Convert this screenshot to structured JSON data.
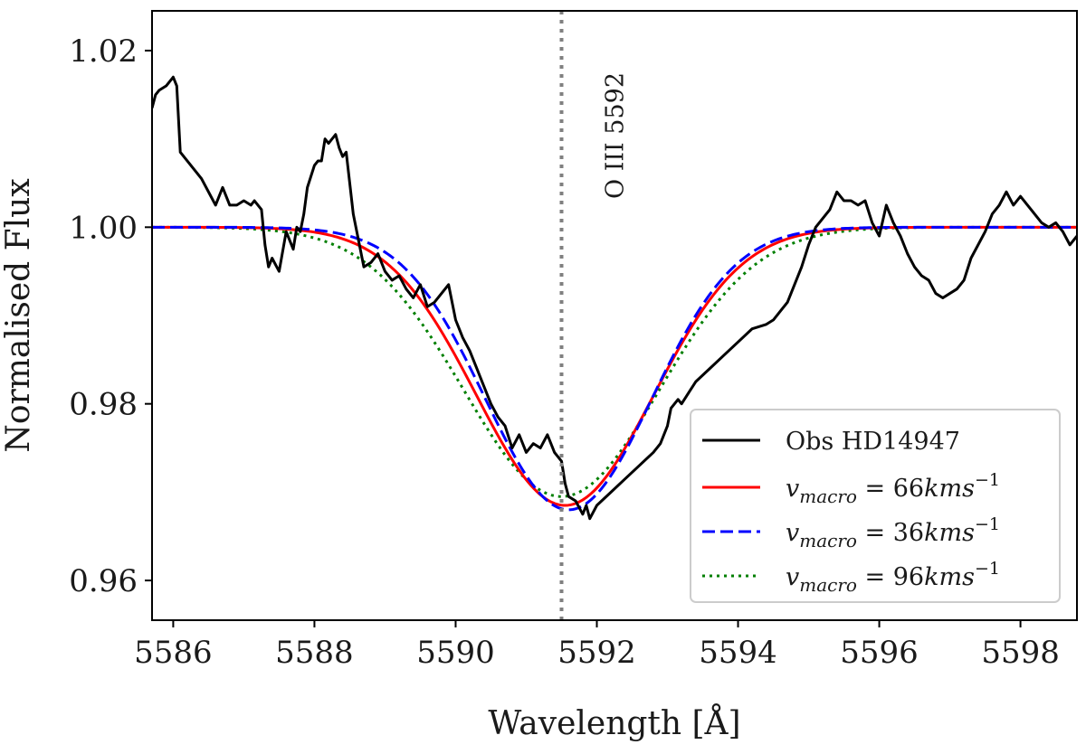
{
  "chart_data": {
    "type": "line",
    "title": "",
    "xlabel": "Wavelength [Å]",
    "ylabel": "Normalised Flux",
    "xlim": [
      5585.7,
      5598.8
    ],
    "ylim": [
      0.9555,
      1.0245
    ],
    "xticks": [
      5586,
      5588,
      5590,
      5592,
      5594,
      5596,
      5598
    ],
    "xtick_labels": [
      "5586",
      "5588",
      "5590",
      "5592",
      "5594",
      "5596",
      "5598"
    ],
    "yticks": [
      0.96,
      0.98,
      1.0,
      1.02
    ],
    "ytick_labels": [
      "0.96",
      "0.98",
      "1.00",
      "1.02"
    ],
    "grid": false,
    "legend_position": "lower-right",
    "annotations": [
      {
        "text": "O III 5592",
        "x": 5591.5,
        "line_color": "#808080",
        "line_style": "dotted"
      }
    ],
    "series": [
      {
        "name": "Obs HD14947",
        "color": "#000000",
        "style": "solid",
        "x": [
          5585.7,
          5585.75,
          5585.8,
          5585.9,
          5586.0,
          5586.05,
          5586.1,
          5586.2,
          5586.3,
          5586.4,
          5586.5,
          5586.6,
          5586.7,
          5586.8,
          5586.9,
          5587.0,
          5587.1,
          5587.15,
          5587.2,
          5587.25,
          5587.3,
          5587.35,
          5587.4,
          5587.5,
          5587.6,
          5587.65,
          5587.7,
          5587.75,
          5587.8,
          5587.85,
          5587.9,
          5588.0,
          5588.05,
          5588.1,
          5588.15,
          5588.2,
          5588.3,
          5588.35,
          5588.4,
          5588.45,
          5588.5,
          5588.55,
          5588.6,
          5588.7,
          5588.8,
          5588.9,
          5589.0,
          5589.1,
          5589.2,
          5589.3,
          5589.4,
          5589.5,
          5589.6,
          5589.7,
          5589.8,
          5589.9,
          5590.0,
          5590.1,
          5590.2,
          5590.3,
          5590.4,
          5590.5,
          5590.6,
          5590.7,
          5590.8,
          5590.9,
          5591.0,
          5591.1,
          5591.2,
          5591.3,
          5591.4,
          5591.5,
          5591.55,
          5591.6,
          5591.7,
          5591.8,
          5591.85,
          5591.9,
          5592.0,
          5592.2,
          5592.4,
          5592.6,
          5592.8,
          5592.9,
          5593.0,
          5593.05,
          5593.1,
          5593.15,
          5593.2,
          5593.4,
          5593.6,
          5593.8,
          5594.0,
          5594.2,
          5594.4,
          5594.5,
          5594.6,
          5594.7,
          5594.8,
          5594.9,
          5595.0,
          5595.1,
          5595.2,
          5595.3,
          5595.4,
          5595.5,
          5595.6,
          5595.7,
          5595.8,
          5595.9,
          5596.0,
          5596.1,
          5596.2,
          5596.3,
          5596.4,
          5596.5,
          5596.6,
          5596.7,
          5596.8,
          5596.9,
          5597.0,
          5597.1,
          5597.2,
          5597.3,
          5597.4,
          5597.5,
          5597.6,
          5597.7,
          5597.8,
          5597.9,
          5598.0,
          5598.1,
          5598.2,
          5598.3,
          5598.4,
          5598.5,
          5598.6,
          5598.7,
          5598.8
        ],
        "y": [
          1.0135,
          1.015,
          1.0155,
          1.016,
          1.017,
          1.016,
          1.0085,
          1.0075,
          1.0065,
          1.0055,
          1.004,
          1.0025,
          1.0045,
          1.0025,
          1.0025,
          1.003,
          1.0025,
          1.003,
          1.0025,
          1.002,
          0.998,
          0.9955,
          0.9965,
          0.995,
          0.9995,
          0.9985,
          0.9975,
          1.0,
          0.9995,
          1.0015,
          1.0045,
          1.007,
          1.0075,
          1.0075,
          1.01,
          1.0095,
          1.0105,
          1.009,
          1.008,
          1.0085,
          1.005,
          1.0015,
          0.9995,
          0.9955,
          0.996,
          0.997,
          0.995,
          0.994,
          0.9945,
          0.993,
          0.992,
          0.9935,
          0.991,
          0.9915,
          0.9925,
          0.9935,
          0.9895,
          0.9875,
          0.986,
          0.984,
          0.982,
          0.98,
          0.9785,
          0.9775,
          0.975,
          0.9765,
          0.9745,
          0.9755,
          0.975,
          0.9765,
          0.9745,
          0.9735,
          0.971,
          0.9695,
          0.969,
          0.9675,
          0.9685,
          0.967,
          0.9685,
          0.97,
          0.9715,
          0.973,
          0.9745,
          0.9755,
          0.9775,
          0.9795,
          0.98,
          0.9805,
          0.98,
          0.9825,
          0.984,
          0.9855,
          0.987,
          0.9885,
          0.989,
          0.9895,
          0.9905,
          0.9915,
          0.9935,
          0.9955,
          0.998,
          1.0,
          1.001,
          1.002,
          1.004,
          1.003,
          1.003,
          1.0025,
          1.003,
          1.0005,
          0.999,
          1.0025,
          1.0005,
          0.999,
          0.997,
          0.9955,
          0.9945,
          0.994,
          0.9925,
          0.992,
          0.9925,
          0.993,
          0.994,
          0.9965,
          0.998,
          0.9995,
          1.0015,
          1.0025,
          1.004,
          1.0025,
          1.0035,
          1.0025,
          1.0015,
          1.0005,
          1.0,
          1.0005,
          0.9995,
          0.998,
          0.999
        ]
      },
      {
        "name": "v_macro = 66kms^-1",
        "color": "#ff0000",
        "style": "solid",
        "center": 5591.55,
        "depth": 0.0315,
        "sigma": 1.25
      },
      {
        "name": "v_macro = 36kms^-1",
        "color": "#0000ff",
        "style": "dashed",
        "center": 5591.6,
        "depth": 0.032,
        "sigma": 1.18
      },
      {
        "name": "v_macro = 96kms^-1",
        "color": "#007f00",
        "style": "dotted",
        "center": 5591.5,
        "depth": 0.0305,
        "sigma": 1.38
      }
    ],
    "legend": [
      {
        "kind": "plain",
        "text": "Obs HD14947",
        "color": "#000000",
        "style": "solid"
      },
      {
        "kind": "vmacro",
        "var": "v",
        "sub": "macro",
        "eq": " = 66",
        "unit": "kms",
        "sup": "−1",
        "color": "#ff0000",
        "style": "solid"
      },
      {
        "kind": "vmacro",
        "var": "v",
        "sub": "macro",
        "eq": " = 36",
        "unit": "kms",
        "sup": "−1",
        "color": "#0000ff",
        "style": "dashed"
      },
      {
        "kind": "vmacro",
        "var": "v",
        "sub": "macro",
        "eq": " = 96",
        "unit": "kms",
        "sup": "−1",
        "color": "#007f00",
        "style": "dotted"
      }
    ]
  }
}
